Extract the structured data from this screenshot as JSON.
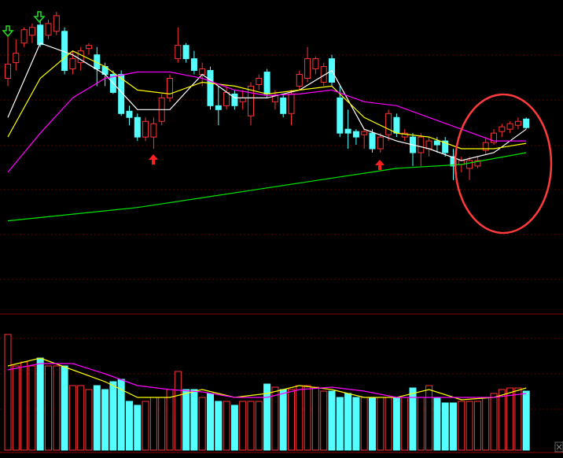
{
  "chart_data": [
    {
      "type": "candlestick",
      "ylim": [
        0,
        400
      ],
      "up_color": "#ff3232",
      "down_color": "#54ffff",
      "open": [
        300,
        320,
        345,
        355,
        368,
        355,
        360,
        360,
        312,
        320,
        338,
        330,
        315,
        305,
        305,
        258,
        250,
        225,
        225,
        245,
        275,
        325,
        342,
        325,
        305,
        310,
        265,
        265,
        280,
        270,
        252,
        292,
        308,
        270,
        275,
        255,
        290,
        300,
        312,
        295,
        325,
        275,
        235,
        232,
        228,
        230,
        210,
        228,
        250,
        225,
        225,
        205,
        210,
        220,
        220,
        200,
        190,
        185,
        188,
        208,
        218,
        232,
        235,
        240,
        248
      ],
      "high": [
        355,
        350,
        365,
        370,
        375,
        375,
        385,
        365,
        335,
        340,
        345,
        340,
        320,
        310,
        310,
        265,
        255,
        250,
        250,
        280,
        305,
        365,
        345,
        335,
        320,
        315,
        290,
        290,
        285,
        285,
        295,
        305,
        312,
        285,
        280,
        285,
        310,
        340,
        328,
        320,
        330,
        290,
        260,
        235,
        235,
        235,
        230,
        260,
        255,
        235,
        230,
        230,
        225,
        225,
        225,
        210,
        200,
        200,
        200,
        225,
        235,
        242,
        245,
        250,
        250
      ],
      "low": [
        290,
        310,
        340,
        345,
        340,
        350,
        355,
        305,
        305,
        310,
        330,
        290,
        290,
        280,
        252,
        240,
        220,
        220,
        210,
        240,
        270,
        320,
        320,
        305,
        290,
        260,
        240,
        260,
        260,
        260,
        240,
        285,
        275,
        260,
        250,
        240,
        285,
        295,
        305,
        290,
        290,
        225,
        210,
        215,
        210,
        205,
        205,
        220,
        225,
        220,
        188,
        188,
        200,
        205,
        200,
        170,
        180,
        170,
        185,
        202,
        215,
        225,
        230,
        235,
        235
      ],
      "close": [
        318,
        332,
        362,
        365,
        343,
        370,
        380,
        310,
        325,
        335,
        342,
        312,
        305,
        282,
        255,
        250,
        225,
        245,
        242,
        275,
        300,
        342,
        325,
        310,
        312,
        265,
        260,
        282,
        265,
        275,
        290,
        300,
        280,
        278,
        255,
        280,
        305,
        325,
        325,
        315,
        295,
        230,
        230,
        225,
        232,
        210,
        225,
        255,
        230,
        230,
        205,
        225,
        220,
        215,
        205,
        188,
        195,
        195,
        195,
        218,
        230,
        238,
        242,
        245,
        237
      ],
      "lines": [
        {
          "color": "#ffffff",
          "x": [
            0,
            4,
            8,
            12,
            16,
            20,
            24,
            28,
            32,
            36,
            40,
            44,
            48,
            52,
            56,
            60,
            64
          ],
          "values": [
            250,
            345,
            330,
            305,
            260,
            260,
            305,
            275,
            275,
            285,
            310,
            235,
            220,
            210,
            195,
            205,
            235
          ]
        },
        {
          "color": "#ffff00",
          "x": [
            0,
            4,
            8,
            12,
            16,
            20,
            24,
            28,
            32,
            36,
            40,
            44,
            48,
            52,
            56,
            60,
            64
          ],
          "values": [
            225,
            300,
            335,
            315,
            285,
            280,
            295,
            290,
            280,
            285,
            290,
            250,
            230,
            225,
            210,
            210,
            217
          ]
        },
        {
          "color": "#ff00ff",
          "x": [
            0,
            4,
            8,
            12,
            16,
            20,
            24,
            28,
            32,
            36,
            40,
            44,
            48,
            52,
            56,
            60,
            64
          ],
          "values": [
            180,
            230,
            275,
            300,
            308,
            308,
            300,
            285,
            278,
            280,
            285,
            270,
            265,
            250,
            235,
            220,
            220
          ]
        },
        {
          "color": "#00e600",
          "x": [
            0,
            16,
            32,
            48,
            56,
            64
          ],
          "values": [
            118,
            135,
            160,
            185,
            190,
            205
          ]
        }
      ]
    },
    {
      "type": "bar",
      "ylim": [
        0,
        172
      ],
      "values": [
        147,
        107,
        112,
        107,
        117,
        107,
        107,
        107,
        82,
        82,
        77,
        82,
        77,
        87,
        90,
        62,
        57,
        62,
        67,
        67,
        77,
        100,
        77,
        77,
        67,
        72,
        62,
        62,
        57,
        62,
        62,
        62,
        84,
        80,
        77,
        77,
        82,
        82,
        80,
        75,
        75,
        67,
        72,
        67,
        67,
        67,
        67,
        67,
        67,
        67,
        79,
        67,
        82,
        67,
        60,
        60,
        62,
        62,
        62,
        67,
        72,
        77,
        79,
        79,
        75
      ],
      "lines": [
        {
          "color": "#ffff00",
          "x": [
            0,
            4,
            8,
            12,
            16,
            20,
            24,
            28,
            32,
            36,
            40,
            44,
            48,
            52,
            56,
            60,
            64
          ],
          "values": [
            107,
            117,
            102,
            87,
            67,
            67,
            77,
            67,
            72,
            82,
            77,
            67,
            67,
            77,
            64,
            67,
            79
          ]
        },
        {
          "color": "#ff00ff",
          "x": [
            0,
            4,
            8,
            12,
            16,
            20,
            24,
            28,
            32,
            36,
            40,
            44,
            48,
            52,
            56,
            60,
            64
          ],
          "values": [
            102,
            110,
            110,
            97,
            82,
            77,
            74,
            67,
            67,
            77,
            80,
            75,
            67,
            67,
            67,
            67,
            72
          ]
        }
      ]
    }
  ]
}
